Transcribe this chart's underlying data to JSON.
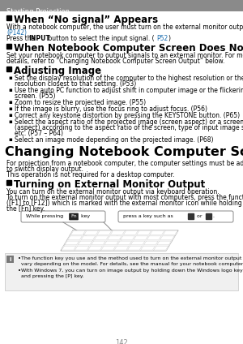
{
  "page_num": "142",
  "bg_color": "#ffffff",
  "header_bg": "#8a8a8a",
  "header_text": "Starting Projection",
  "header_text_color": "#ffffff",
  "link_color": "#1a6db0",
  "black": "#000000",
  "gray_note_bg": "#f0f0f0",
  "gray_note_border": "#cccccc",
  "section1_title": "When “No signal” Appears",
  "section2_title": "When Notebook Computer Screen Does Not Appear",
  "section3_title": "Adjusting Image",
  "section4_title": "Changing Notebook Computer Screen Output",
  "section5_title": "Turning on External Monitor Output"
}
